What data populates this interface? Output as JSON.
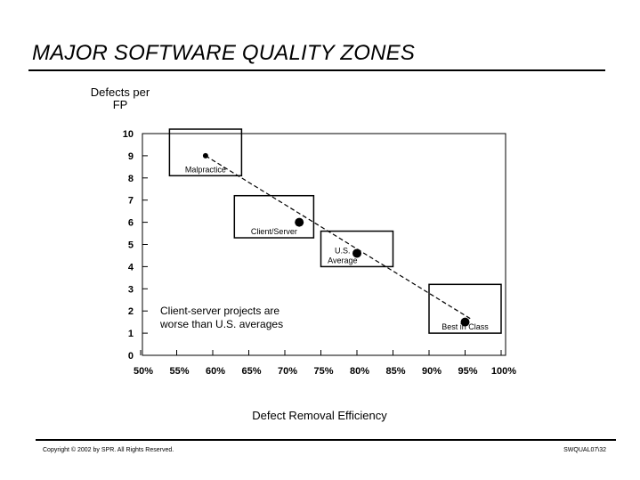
{
  "chart_data": {
    "type": "scatter",
    "title": "MAJOR SOFTWARE QUALITY ZONES",
    "ylabel": "Defects per FP",
    "xlabel": "Defect Removal Efficiency",
    "y_ticks": [
      "0",
      "1",
      "2",
      "3",
      "4",
      "5",
      "6",
      "7",
      "8",
      "9",
      "10"
    ],
    "x_ticks": [
      "50%",
      "55%",
      "60%",
      "65%",
      "70%",
      "75%",
      "80%",
      "85%",
      "90%",
      "95%",
      "100%"
    ],
    "xlim": [
      50,
      100
    ],
    "ylim": [
      0,
      10
    ],
    "points": [
      {
        "x": 59,
        "y": 9
      },
      {
        "x": 72,
        "y": 6
      },
      {
        "x": 80,
        "y": 4.6
      },
      {
        "x": 95,
        "y": 1.5
      }
    ],
    "zones": [
      {
        "label": "Malpractice",
        "x_range": [
          54,
          64
        ],
        "y_range": [
          8.1,
          10.2
        ]
      },
      {
        "label": "Client/Server",
        "x_range": [
          63,
          74
        ],
        "y_range": [
          5.3,
          7.2
        ]
      },
      {
        "label": "U.S. Average",
        "x_range": [
          75,
          85
        ],
        "y_range": [
          4.0,
          5.6
        ]
      },
      {
        "label": "Best in Class",
        "x_range": [
          90,
          100
        ],
        "y_range": [
          1.0,
          3.2
        ]
      }
    ],
    "annotation": "Client-server projects are worse than U.S. averages",
    "trend_line": {
      "from": {
        "x": 59,
        "y": 9
      },
      "to": {
        "x": 96,
        "y": 1.6
      }
    }
  },
  "footer": {
    "copyright": "Copyright © 2002 by SPR.  All Rights Reserved.",
    "code": "SWQUAL07\\32"
  }
}
